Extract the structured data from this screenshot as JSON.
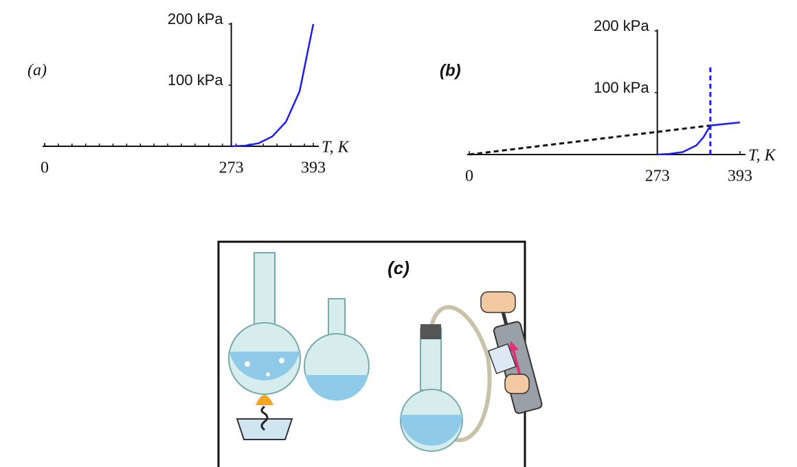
{
  "chart_data": [
    {
      "type": "line",
      "label": "(a)",
      "xlabel": "T, K",
      "xlim": [
        0,
        393
      ],
      "ylim": [
        0,
        200
      ],
      "xticks": [
        0,
        273,
        393
      ],
      "yticks": [
        {
          "value": 100,
          "label": "100 kPa"
        },
        {
          "value": 200,
          "label": "200 kPa"
        }
      ],
      "yaxis_x": 273,
      "minor_tick_step": 20,
      "series": [
        {
          "color": "#1a1aff",
          "dash": false,
          "x": [
            273,
            293,
            313,
            333,
            353,
            373,
            393
          ],
          "values": [
            0,
            1,
            5,
            16,
            40,
            90,
            200
          ]
        }
      ]
    },
    {
      "type": "line",
      "label": "(b)",
      "xlabel": "T, K",
      "xlim": [
        0,
        393
      ],
      "ylim": [
        0,
        200
      ],
      "xticks": [
        0,
        273,
        393
      ],
      "yticks": [
        {
          "value": 100,
          "label": "100 kPa"
        },
        {
          "value": 200,
          "label": "200 kPa"
        }
      ],
      "yaxis_x": 273,
      "series": [
        {
          "color": "#111111",
          "dash": true,
          "x": [
            0,
            350
          ],
          "values": [
            0,
            47
          ]
        },
        {
          "color": "#1a1aff",
          "dash": false,
          "x": [
            273,
            290,
            310,
            330,
            340,
            350,
            393
          ],
          "values": [
            0,
            1,
            4,
            15,
            28,
            47,
            52
          ]
        },
        {
          "color": "#1a1aff",
          "dash": true,
          "x": [
            350,
            350
          ],
          "values": [
            0,
            141
          ]
        }
      ]
    }
  ],
  "figure_c": {
    "label": "(c)"
  }
}
